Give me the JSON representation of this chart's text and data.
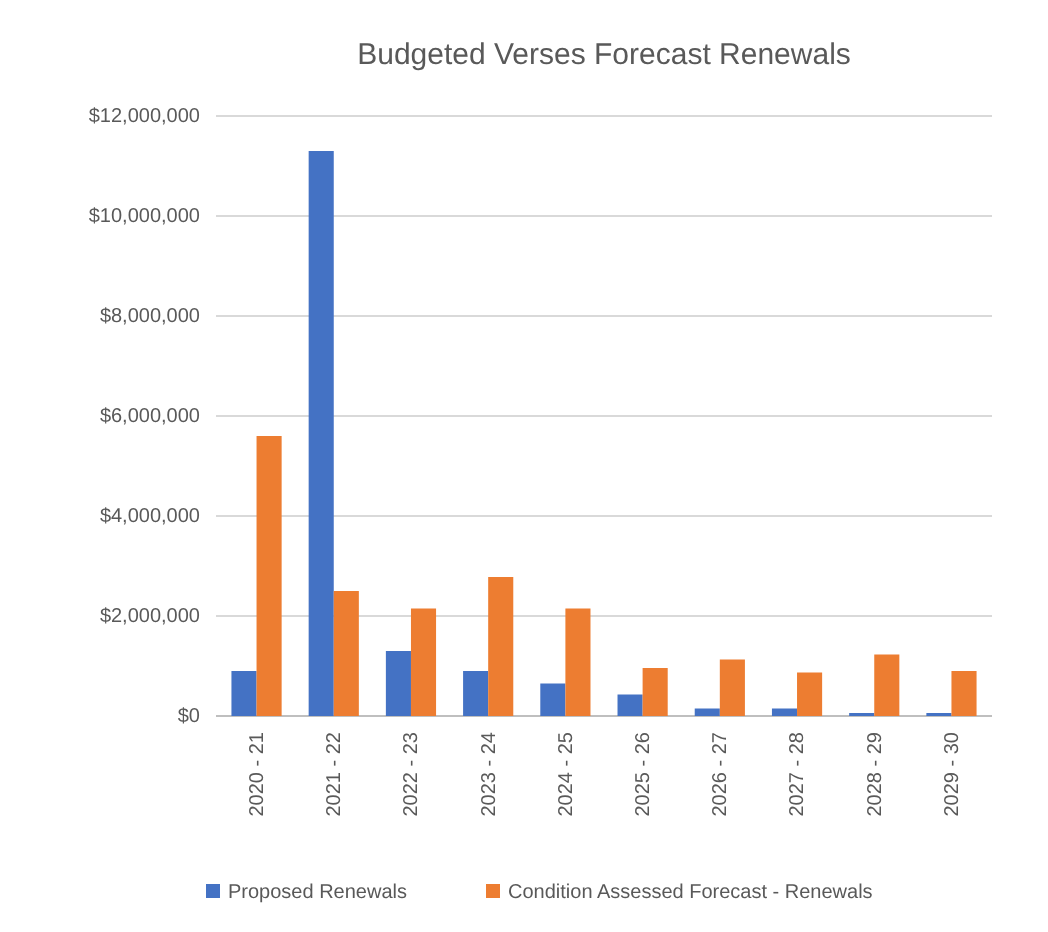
{
  "chart_data": {
    "type": "bar",
    "title": "Budgeted Verses Forecast Renewals",
    "categories": [
      "2020 - 21",
      "2021 - 22",
      "2022 - 23",
      "2023 - 24",
      "2024 - 25",
      "2025 - 26",
      "2026 - 27",
      "2027 - 28",
      "2028 - 29",
      "2029 - 30"
    ],
    "series": [
      {
        "name": "Proposed Renewals",
        "color": "#4472c4",
        "values": [
          900000,
          11300000,
          1300000,
          900000,
          650000,
          430000,
          150000,
          150000,
          60000,
          60000
        ]
      },
      {
        "name": "Condition Assessed Forecast - Renewals",
        "color": "#ed7d31",
        "values": [
          5600000,
          2500000,
          2150000,
          2780000,
          2150000,
          960000,
          1130000,
          870000,
          1230000,
          900000
        ]
      }
    ],
    "ylim": [
      0,
      12000000
    ],
    "yticks": [
      {
        "value": 0,
        "label": "$0"
      },
      {
        "value": 2000000,
        "label": "$2,000,000"
      },
      {
        "value": 4000000,
        "label": "$4,000,000"
      },
      {
        "value": 6000000,
        "label": "$6,000,000"
      },
      {
        "value": 8000000,
        "label": "$8,000,000"
      },
      {
        "value": 10000000,
        "label": "$10,000,000"
      },
      {
        "value": 12000000,
        "label": "$12,000,000"
      }
    ],
    "grid": "y",
    "legend": "bottom"
  }
}
